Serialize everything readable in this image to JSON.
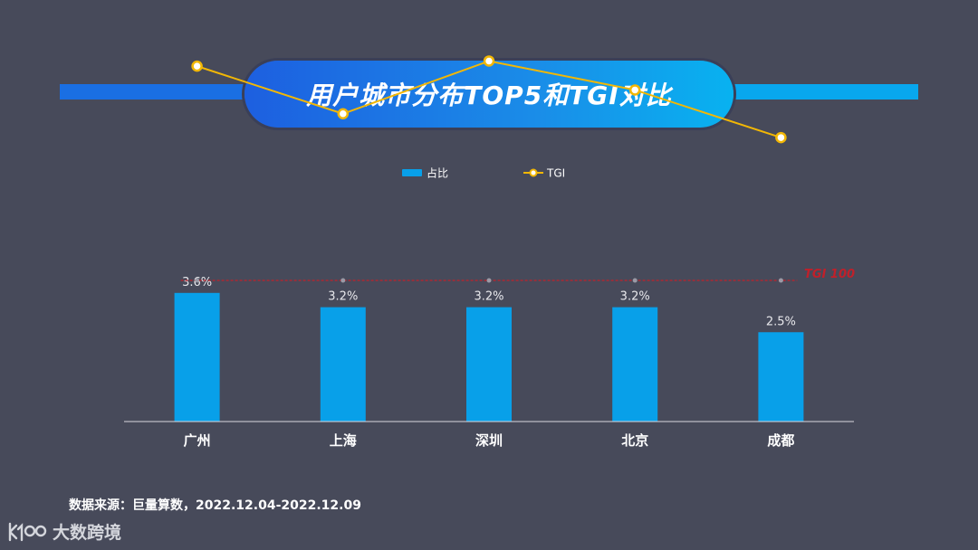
{
  "title": "用户城市分布TOP5和TGI对比",
  "source": "数据来源：巨量算数，2022.12.04-2022.12.09",
  "logo": {
    "text": "大数跨境"
  },
  "chart_data": {
    "type": "bar",
    "categories": [
      "广州",
      "上海",
      "深圳",
      "北京",
      "成都"
    ],
    "series": [
      {
        "name": "占比",
        "type": "bar",
        "values": [
          3.6,
          3.2,
          3.2,
          3.2,
          2.5
        ],
        "labels": [
          "3.6%",
          "3.2%",
          "3.2%",
          "3.2%",
          "2.5%"
        ],
        "color": "#08a0e9"
      },
      {
        "name": "TGI",
        "type": "line",
        "values": [
          226,
          198,
          229,
          212,
          184
        ],
        "color": "#f2b705"
      }
    ],
    "reference_line": {
      "label": "TGI 100",
      "value": 100,
      "color": "#c0202a"
    },
    "bar_axis_max": 4.0,
    "tgi_axis_max": 300,
    "legend_placement": "top-center",
    "grid": false
  }
}
